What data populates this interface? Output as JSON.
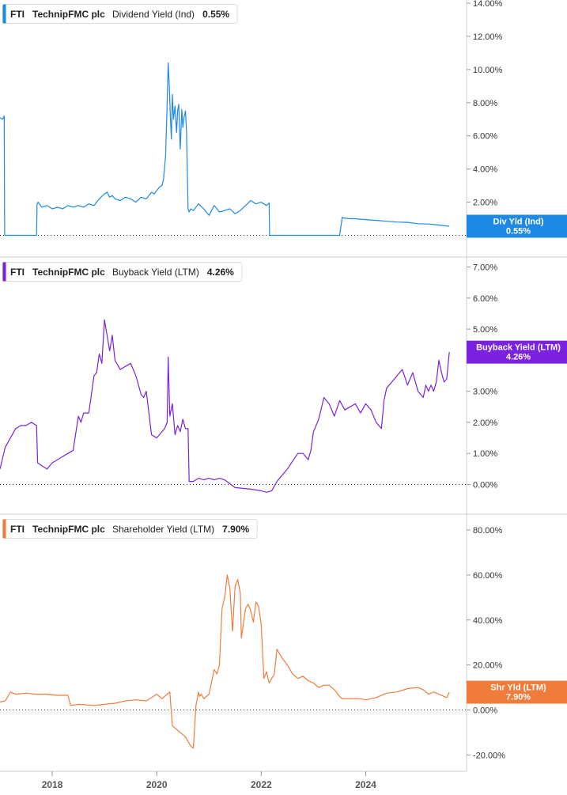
{
  "chart_data": [
    {
      "type": "line",
      "panel": "dividend",
      "legend": {
        "ticker": "FTI",
        "company": "TechnipFMC plc",
        "metric": "Dividend Yield (Ind)",
        "value": "0.55%"
      },
      "badge": {
        "label": "Div Yld (Ind)",
        "value": "0.55%"
      },
      "color": "#1e88e5",
      "ylim": [
        0,
        14
      ],
      "y_ticks": [
        "2.00%",
        "4.00%",
        "6.00%",
        "8.00%",
        "10.00%",
        "12.00%",
        "14.00%"
      ],
      "y_tick_values": [
        2,
        4,
        6,
        8,
        10,
        12,
        14
      ],
      "x": [
        2017.0,
        2017.05,
        2017.08,
        2017.09,
        2017.7,
        2017.71,
        2017.73,
        2017.8,
        2017.9,
        2018.0,
        2018.1,
        2018.2,
        2018.3,
        2018.4,
        2018.5,
        2018.6,
        2018.7,
        2018.8,
        2018.9,
        2019.0,
        2019.05,
        2019.1,
        2019.15,
        2019.2,
        2019.3,
        2019.4,
        2019.5,
        2019.6,
        2019.7,
        2019.8,
        2019.9,
        2019.95,
        2020.0,
        2020.05,
        2020.1,
        2020.13,
        2020.17,
        2020.2,
        2020.22,
        2020.24,
        2020.26,
        2020.28,
        2020.3,
        2020.32,
        2020.35,
        2020.38,
        2020.4,
        2020.42,
        2020.45,
        2020.48,
        2020.5,
        2020.52,
        2020.55,
        2020.57,
        2020.6,
        2020.62,
        2020.65,
        2020.7,
        2020.8,
        2020.9,
        2021.0,
        2021.1,
        2021.2,
        2021.3,
        2021.4,
        2021.5,
        2021.6,
        2021.7,
        2021.8,
        2021.9,
        2022.0,
        2022.1,
        2022.15,
        2022.16,
        2022.5,
        2023.0,
        2023.5,
        2023.55,
        2023.56,
        2023.7,
        2023.8,
        2024.0,
        2024.2,
        2024.4,
        2024.6,
        2024.8,
        2025.0,
        2025.2,
        2025.4,
        2025.6
      ],
      "y": [
        7.1,
        7.0,
        7.2,
        0.0,
        0.0,
        1.9,
        2.0,
        1.7,
        1.8,
        1.6,
        1.7,
        1.6,
        1.8,
        1.7,
        1.8,
        1.7,
        1.9,
        1.8,
        2.2,
        2.5,
        2.6,
        2.3,
        2.4,
        2.2,
        2.1,
        2.3,
        2.2,
        2.0,
        2.3,
        2.2,
        2.6,
        2.5,
        2.7,
        2.9,
        3.0,
        3.4,
        4.8,
        8.0,
        10.4,
        9.0,
        7.2,
        5.8,
        8.5,
        7.0,
        7.8,
        6.2,
        7.5,
        7.9,
        5.2,
        7.6,
        6.5,
        7.1,
        7.5,
        6.2,
        1.6,
        1.4,
        1.6,
        1.5,
        1.9,
        1.6,
        1.2,
        1.8,
        1.4,
        1.5,
        1.6,
        1.3,
        1.5,
        1.8,
        2.1,
        1.9,
        2.0,
        1.8,
        1.95,
        0.0,
        0.0,
        0.0,
        0.0,
        1.1,
        1.05,
        1.0,
        1.0,
        0.95,
        0.9,
        0.85,
        0.8,
        0.78,
        0.7,
        0.68,
        0.62,
        0.55
      ]
    },
    {
      "type": "line",
      "panel": "buyback",
      "legend": {
        "ticker": "FTI",
        "company": "TechnipFMC plc",
        "metric": "Buyback Yield (LTM)",
        "value": "4.26%"
      },
      "badge": {
        "label": "Buyback Yield (LTM)",
        "value": "4.26%"
      },
      "color": "#7b22e0",
      "ylim": [
        -0.5,
        7.0
      ],
      "y_ticks": [
        "0.00%",
        "1.00%",
        "2.00%",
        "3.00%",
        "4.00%",
        "5.00%",
        "6.00%",
        "7.00%"
      ],
      "y_tick_values": [
        0,
        1,
        2,
        3,
        4,
        5,
        6,
        7
      ],
      "x": [
        2017.0,
        2017.1,
        2017.2,
        2017.3,
        2017.4,
        2017.5,
        2017.6,
        2017.7,
        2017.72,
        2017.8,
        2017.9,
        2018.0,
        2018.1,
        2018.2,
        2018.3,
        2018.4,
        2018.5,
        2018.55,
        2018.6,
        2018.7,
        2018.8,
        2018.85,
        2018.9,
        2018.95,
        2019.0,
        2019.05,
        2019.1,
        2019.15,
        2019.2,
        2019.3,
        2019.4,
        2019.5,
        2019.6,
        2019.7,
        2019.75,
        2019.8,
        2019.9,
        2020.0,
        2020.1,
        2020.15,
        2020.2,
        2020.22,
        2020.25,
        2020.3,
        2020.35,
        2020.4,
        2020.45,
        2020.5,
        2020.55,
        2020.6,
        2020.62,
        2020.7,
        2020.8,
        2020.9,
        2021.0,
        2021.1,
        2021.2,
        2021.3,
        2021.5,
        2021.8,
        2022.0,
        2022.1,
        2022.2,
        2022.3,
        2022.5,
        2022.7,
        2022.8,
        2022.85,
        2022.9,
        2022.95,
        2023.0,
        2023.05,
        2023.1,
        2023.2,
        2023.3,
        2023.4,
        2023.5,
        2023.6,
        2023.7,
        2023.8,
        2023.9,
        2024.0,
        2024.1,
        2024.2,
        2024.3,
        2024.35,
        2024.4,
        2024.5,
        2024.6,
        2024.7,
        2024.8,
        2024.9,
        2025.0,
        2025.1,
        2025.15,
        2025.2,
        2025.25,
        2025.3,
        2025.35,
        2025.4,
        2025.45,
        2025.5,
        2025.55,
        2025.6
      ],
      "y": [
        0.5,
        1.2,
        1.5,
        1.8,
        1.9,
        1.9,
        2.0,
        1.9,
        0.7,
        0.6,
        0.5,
        0.7,
        0.8,
        0.9,
        1.0,
        1.1,
        2.2,
        2.0,
        2.3,
        2.3,
        3.5,
        3.6,
        4.2,
        3.9,
        5.3,
        4.8,
        4.3,
        4.8,
        4.0,
        3.7,
        3.8,
        3.9,
        3.5,
        2.9,
        2.8,
        3.0,
        1.6,
        1.5,
        1.7,
        1.8,
        2.0,
        4.1,
        2.2,
        2.6,
        1.6,
        1.9,
        1.7,
        2.1,
        1.8,
        1.8,
        0.1,
        0.1,
        0.2,
        0.15,
        0.2,
        0.15,
        0.2,
        0.15,
        -0.1,
        -0.15,
        -0.2,
        -0.25,
        -0.2,
        0.1,
        0.5,
        1.0,
        1.0,
        0.9,
        0.8,
        1.1,
        1.7,
        1.9,
        2.1,
        2.8,
        2.6,
        2.2,
        2.7,
        2.4,
        2.5,
        2.6,
        2.3,
        2.6,
        2.4,
        2.0,
        1.8,
        2.7,
        3.1,
        3.3,
        3.5,
        3.7,
        3.2,
        3.6,
        3.0,
        2.8,
        3.2,
        3.0,
        3.2,
        3.0,
        3.3,
        4.0,
        3.6,
        3.3,
        3.4,
        4.26
      ]
    },
    {
      "type": "line",
      "panel": "shareholder",
      "legend": {
        "ticker": "FTI",
        "company": "TechnipFMC plc",
        "metric": "Shareholder Yield (LTM)",
        "value": "7.90%"
      },
      "badge": {
        "label": "Shr Yld (LTM)",
        "value": "7.90%"
      },
      "color": "#f07c3c",
      "ylim": [
        -25,
        90
      ],
      "y_ticks": [
        "-20.00%",
        "0.00%",
        "20.00%",
        "40.00%",
        "60.00%",
        "80.00%"
      ],
      "y_tick_values": [
        -20,
        0,
        20,
        40,
        60,
        80
      ],
      "x_ticks": [
        "2018",
        "2020",
        "2022",
        "2024"
      ],
      "x_tick_values": [
        2018,
        2020,
        2022,
        2024
      ],
      "x": [
        2017.0,
        2017.1,
        2017.2,
        2017.3,
        2017.5,
        2017.7,
        2017.9,
        2018.1,
        2018.3,
        2018.35,
        2018.5,
        2018.8,
        2019.0,
        2019.2,
        2019.4,
        2019.6,
        2019.8,
        2020.0,
        2020.1,
        2020.2,
        2020.25,
        2020.3,
        2020.35,
        2020.45,
        2020.55,
        2020.6,
        2020.65,
        2020.7,
        2020.75,
        2020.8,
        2020.82,
        2020.85,
        2020.9,
        2021.0,
        2021.1,
        2021.15,
        2021.2,
        2021.25,
        2021.3,
        2021.35,
        2021.4,
        2021.45,
        2021.5,
        2021.55,
        2021.6,
        2021.62,
        2021.7,
        2021.75,
        2021.8,
        2021.85,
        2021.9,
        2021.95,
        2022.0,
        2022.05,
        2022.1,
        2022.15,
        2022.25,
        2022.3,
        2022.4,
        2022.5,
        2022.55,
        2022.6,
        2022.7,
        2022.8,
        2022.9,
        2023.0,
        2023.1,
        2023.2,
        2023.3,
        2023.4,
        2023.5,
        2023.55,
        2023.7,
        2023.9,
        2024.0,
        2024.2,
        2024.4,
        2024.6,
        2024.8,
        2025.0,
        2025.1,
        2025.2,
        2025.3,
        2025.4,
        2025.5,
        2025.55,
        2025.6
      ],
      "y": [
        3.5,
        4.0,
        8.0,
        7.0,
        7.5,
        7.0,
        7.0,
        6.5,
        6.5,
        2.0,
        2.5,
        2.0,
        2.5,
        3.0,
        4.0,
        4.5,
        4.0,
        7.0,
        5.0,
        7.0,
        8.0,
        -7.0,
        -8.0,
        -10.0,
        -12.0,
        -14.0,
        -16.0,
        -17.0,
        2.0,
        8.0,
        6.0,
        7.0,
        5.0,
        7.0,
        18.0,
        16.0,
        20.0,
        45.0,
        50.0,
        60.0,
        54.0,
        35.0,
        55.0,
        58.0,
        52.0,
        32.0,
        45.0,
        47.0,
        44.0,
        39.0,
        48.0,
        46.0,
        38.0,
        14.0,
        17.0,
        12.0,
        16.0,
        27.0,
        23.0,
        20.0,
        18.0,
        16.0,
        14.0,
        15.0,
        13.0,
        12.0,
        10.0,
        11.0,
        11.0,
        9.0,
        6.0,
        5.0,
        5.0,
        5.0,
        4.5,
        5.5,
        7.5,
        8.0,
        9.5,
        10.0,
        9.0,
        7.0,
        8.0,
        7.0,
        6.0,
        5.5,
        7.9
      ]
    }
  ]
}
